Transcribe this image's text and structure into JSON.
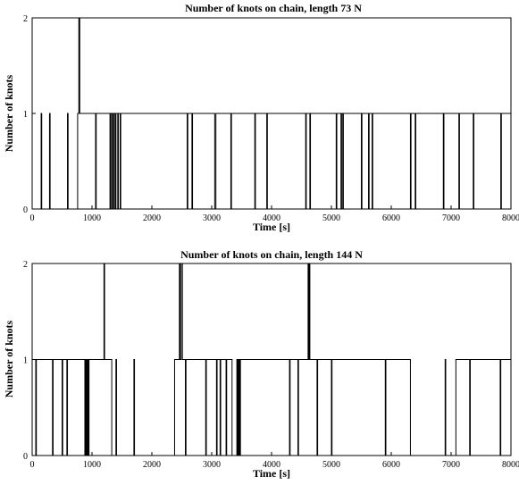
{
  "chart_data": [
    {
      "type": "line",
      "step": true,
      "title": "Number of knots on chain, length 73 N",
      "xlabel": "Time [s]",
      "ylabel": "Number of knots",
      "xlim": [
        0,
        8000
      ],
      "ylim": [
        0,
        2
      ],
      "xticks": [
        "0",
        "1000",
        "2000",
        "3000",
        "4000",
        "5000",
        "6000",
        "7000",
        "8000"
      ],
      "yticks": [
        "0",
        "1",
        "2"
      ],
      "grid": false,
      "color": "#000000",
      "series": [
        {
          "x": [
            0,
            150,
            160,
            290,
            300,
            590,
            600,
            760,
            780,
            795,
            800,
            810,
            830,
            1060,
            1070,
            1300,
            1310,
            1330,
            1340,
            1360,
            1370,
            1390,
            1400,
            1430,
            1440,
            1470,
            1480,
            2590,
            2600,
            2670,
            2680,
            3050,
            3070,
            3320,
            3330,
            3720,
            3730,
            3920,
            3930,
            4570,
            4580,
            4640,
            4650,
            5080,
            5090,
            5160,
            5170,
            5190,
            5200,
            5500,
            5510,
            5620,
            5630,
            5680,
            5690,
            6320,
            6330,
            6400,
            6410,
            6870,
            6880,
            7130,
            7140,
            7370,
            7380,
            7830,
            7840,
            8000
          ],
          "y": [
            0,
            1,
            0,
            1,
            0,
            1,
            0,
            1,
            2,
            1,
            1,
            1,
            1,
            0,
            1,
            0,
            1,
            0,
            1,
            0,
            1,
            0,
            1,
            0,
            1,
            0,
            1,
            0,
            1,
            0,
            1,
            0,
            1,
            0,
            1,
            0,
            1,
            0,
            1,
            0,
            1,
            0,
            1,
            0,
            1,
            0,
            1,
            0,
            1,
            0,
            1,
            0,
            1,
            0,
            1,
            0,
            1,
            0,
            1,
            0,
            1,
            0,
            1,
            0,
            1,
            0,
            1,
            1
          ]
        }
      ]
    },
    {
      "type": "line",
      "step": true,
      "title": "Number of knots on chain, length 144 N",
      "xlabel": "Time [s]",
      "ylabel": "Number of knots",
      "xlim": [
        0,
        8000
      ],
      "ylim": [
        0,
        2
      ],
      "xticks": [
        "0",
        "1000",
        "2000",
        "3000",
        "4000",
        "5000",
        "6000",
        "7000",
        "8000"
      ],
      "yticks": [
        "0",
        "1",
        "2"
      ],
      "grid": false,
      "color": "#000000",
      "series": [
        {
          "x": [
            0,
            60,
            70,
            340,
            350,
            500,
            510,
            580,
            590,
            880,
            890,
            900,
            910,
            920,
            930,
            940,
            950,
            1200,
            1210,
            1220,
            1230,
            1330,
            1400,
            1410,
            1700,
            1710,
            2380,
            2460,
            2470,
            2490,
            2510,
            2560,
            2570,
            2900,
            2910,
            3080,
            3090,
            3140,
            3150,
            3240,
            3250,
            3340,
            3420,
            3430,
            3440,
            3450,
            3460,
            3470,
            3480,
            3990,
            4300,
            4310,
            4440,
            4450,
            4550,
            4610,
            4620,
            4630,
            4640,
            4650,
            4760,
            4770,
            5000,
            5010,
            5540,
            5900,
            5910,
            6320,
            6900,
            6910,
            7080,
            7310,
            7320,
            7820,
            7830,
            8000
          ],
          "y": [
            1,
            0,
            1,
            0,
            1,
            0,
            1,
            0,
            1,
            0,
            1,
            0,
            1,
            0,
            1,
            0,
            1,
            2,
            1,
            1,
            1,
            0,
            1,
            0,
            1,
            0,
            1,
            2,
            1,
            2,
            1,
            0,
            1,
            0,
            1,
            0,
            1,
            0,
            1,
            0,
            1,
            0,
            1,
            0,
            1,
            0,
            1,
            0,
            1,
            1,
            0,
            1,
            0,
            1,
            1,
            2,
            1,
            2,
            1,
            1,
            0,
            1,
            0,
            1,
            1,
            0,
            1,
            0,
            1,
            0,
            1,
            0,
            1,
            0,
            1,
            1
          ]
        }
      ]
    }
  ]
}
